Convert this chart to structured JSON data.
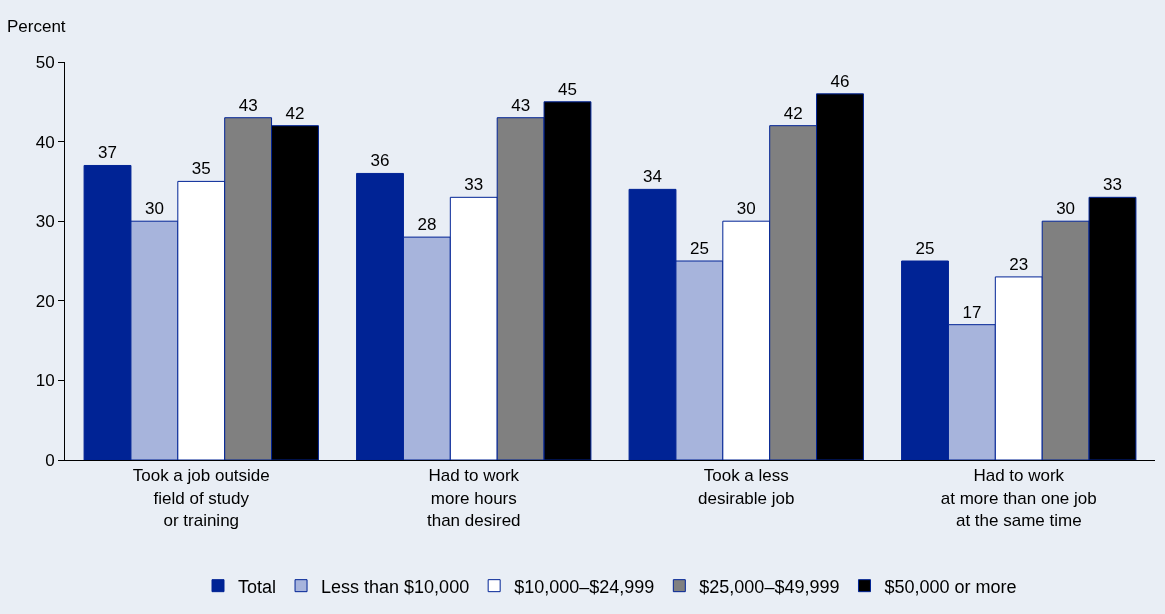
{
  "chart_data": {
    "type": "bar",
    "ylabel": "Percent",
    "categories": [
      "Took a job outside\nfield of study\nor training",
      "Had to work\nmore hours\nthan desired",
      "Took a less\ndesirable job",
      "Had to work\nat more than one job\nat the same time"
    ],
    "series": [
      {
        "name": "Total",
        "color": "#002395",
        "values": [
          37,
          36,
          34,
          25
        ]
      },
      {
        "name": "Less than $10,000",
        "color": "#a7b4dc",
        "values": [
          30,
          28,
          25,
          17
        ]
      },
      {
        "name": "$10,000–$24,999",
        "color": "#ffffff",
        "values": [
          35,
          33,
          30,
          23
        ]
      },
      {
        "name": "$25,000–$49,999",
        "color": "#808080",
        "values": [
          43,
          43,
          42,
          30
        ]
      },
      {
        "name": "$50,000 or more",
        "color": "#000000",
        "values": [
          42,
          45,
          46,
          33
        ]
      }
    ],
    "ylim": [
      0,
      50
    ],
    "yticks": [
      0,
      10,
      20,
      30,
      40,
      50
    ],
    "grid": false,
    "legend": "bottom",
    "data_labels": true
  }
}
